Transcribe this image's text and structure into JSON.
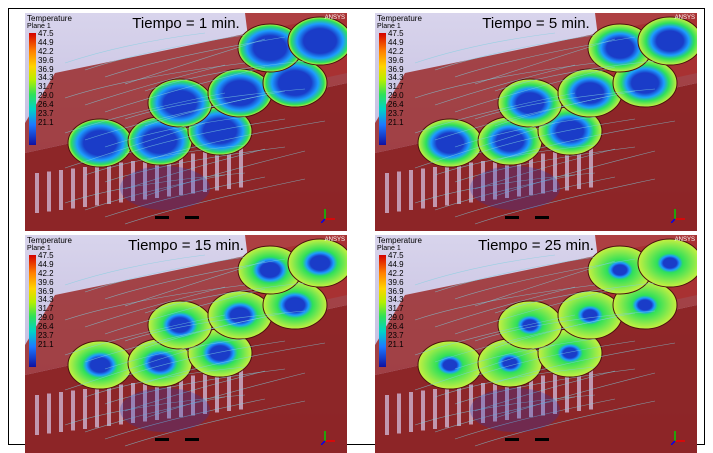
{
  "legend": {
    "title": "Temperature",
    "subtitle": "Plane 1",
    "ticks": [
      "47.5",
      "44.9",
      "42.2",
      "39.6",
      "36.9",
      "34.3",
      "31.7",
      "29.0",
      "26.4",
      "23.7",
      "21.1"
    ]
  },
  "brand": "ANSYS",
  "panels": [
    {
      "title": "Tiempo = 1 min.",
      "cool_fraction": 0.85
    },
    {
      "title": "Tiempo = 5 min.",
      "cool_fraction": 0.7
    },
    {
      "title": "Tiempo = 15 min.",
      "cool_fraction": 0.5
    },
    {
      "title": "Tiempo = 25 min.",
      "cool_fraction": 0.35
    }
  ],
  "colors": {
    "crate": "#8a1e1e",
    "background": "#d8d4ec",
    "cold": "#1a3cc8",
    "warm": "#2ee05a"
  }
}
